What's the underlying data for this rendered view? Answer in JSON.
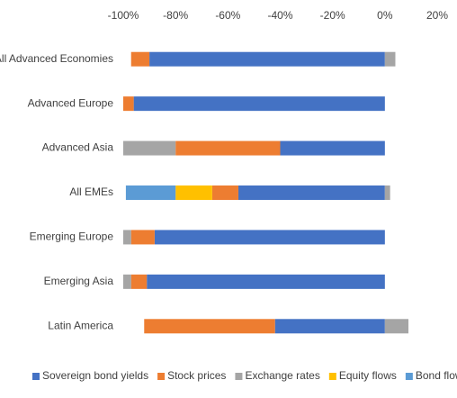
{
  "chart_data": {
    "type": "stacked-hbar",
    "categories": [
      "All Advanced Economies",
      "Advanced Europe",
      "Advanced Asia",
      "All EMEs",
      "Emerging Europe",
      "Emerging Asia",
      "Latin America"
    ],
    "series": [
      {
        "name": "Sovereign bond yields",
        "color": "#4472c4",
        "values": [
          -90,
          -96,
          -40,
          -56,
          -88,
          -91,
          -42
        ]
      },
      {
        "name": "Stock prices",
        "color": "#ed7d31",
        "values": [
          -7,
          -4,
          -40,
          -10,
          -9,
          -6,
          -50
        ]
      },
      {
        "name": "Exchange rates",
        "color": "#a5a5a5",
        "values": [
          4,
          null,
          -20,
          2,
          -3,
          -3,
          9
        ]
      },
      {
        "name": "Equity flows",
        "color": "#ffc000",
        "values": [
          null,
          null,
          null,
          -14,
          null,
          null,
          null
        ]
      },
      {
        "name": "Bond flows",
        "color": "#5b9bd5",
        "values": [
          null,
          null,
          null,
          -19,
          null,
          null,
          null
        ]
      }
    ],
    "xlim": [
      -100,
      20
    ],
    "xticks": [
      {
        "value": -100,
        "label": "-100%"
      },
      {
        "value": -80,
        "label": "-80%"
      },
      {
        "value": -60,
        "label": "-60%"
      },
      {
        "value": -40,
        "label": "-40%"
      },
      {
        "value": -20,
        "label": "-20%"
      },
      {
        "value": 0,
        "label": "0%"
      },
      {
        "value": 20,
        "label": "20%"
      }
    ],
    "legend": "bottom"
  }
}
